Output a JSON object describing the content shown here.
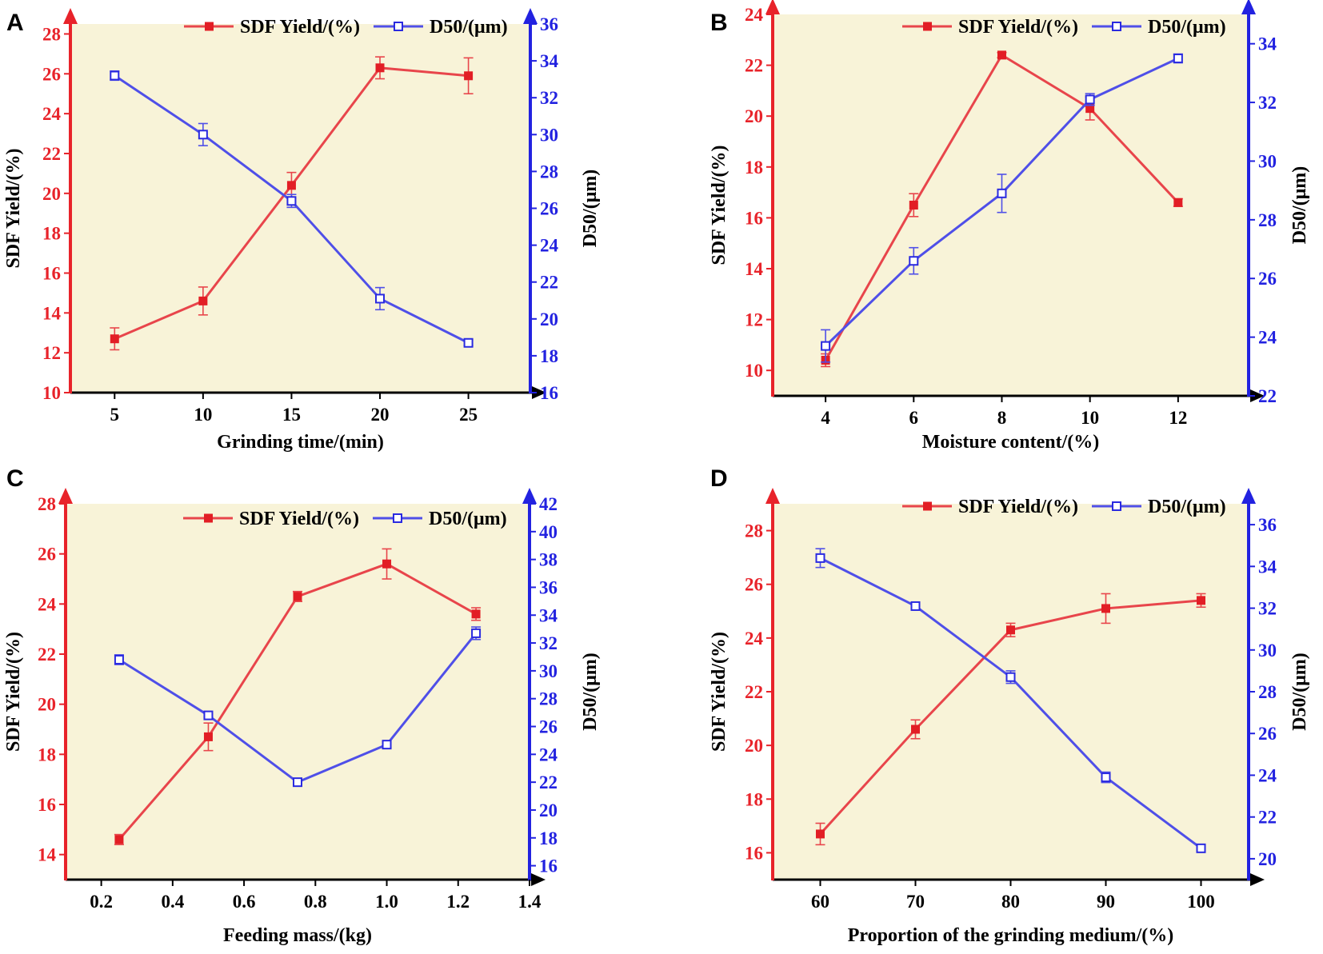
{
  "figure": {
    "colors": {
      "plot_background": "#f8f3d8",
      "left_axis": "#e8232a",
      "right_axis": "#2222e0",
      "sdf_line": "#e8454b",
      "sdf_marker": "#e21e25",
      "d50_line": "#4f4fe8",
      "d50_marker": "#2a2ae0",
      "x_axis": "#000000"
    }
  },
  "chart_data": [
    {
      "panel": "A",
      "type": "line",
      "xlabel": "Grinding time/(min)",
      "ylabel": "SDF Yield/(%)",
      "y2label": "D50/(μm)",
      "legend": [
        "SDF Yield/(%)",
        "D50/(μm)"
      ],
      "legend_position": "top-right",
      "xlim": [
        2.5,
        28.5
      ],
      "xticks": [
        "5",
        "10",
        "15",
        "20",
        "25"
      ],
      "xtick_values": [
        5,
        10,
        15,
        20,
        25
      ],
      "ylim": [
        10,
        28.5
      ],
      "yticks": [
        "10",
        "12",
        "14",
        "16",
        "18",
        "20",
        "22",
        "24",
        "26",
        "28"
      ],
      "ytick_values": [
        10,
        12,
        14,
        16,
        18,
        20,
        22,
        24,
        26,
        28
      ],
      "y2lim": [
        16,
        36
      ],
      "y2ticks": [
        "16",
        "18",
        "20",
        "22",
        "24",
        "26",
        "28",
        "30",
        "32",
        "34",
        "36"
      ],
      "y2tick_values": [
        16,
        18,
        20,
        22,
        24,
        26,
        28,
        30,
        32,
        34,
        36
      ],
      "series": [
        {
          "name": "SDF Yield/(%)",
          "axis": "left",
          "x": [
            5,
            10,
            15,
            20,
            25
          ],
          "values": [
            12.7,
            14.6,
            20.4,
            26.3,
            25.9
          ],
          "errors": [
            0.55,
            0.7,
            0.65,
            0.55,
            0.9
          ]
        },
        {
          "name": "D50/(μm)",
          "axis": "right",
          "x": [
            5,
            10,
            15,
            20,
            25
          ],
          "values": [
            33.2,
            30.0,
            26.4,
            21.1,
            18.7
          ],
          "errors": [
            0.25,
            0.6,
            0.35,
            0.6,
            0.15
          ]
        }
      ]
    },
    {
      "panel": "B",
      "type": "line",
      "xlabel": "Moisture content/(%)",
      "ylabel": "SDF Yield/(%)",
      "y2label": "D50/(μm)",
      "legend": [
        "SDF Yield/(%)",
        "D50/(μm)"
      ],
      "legend_position": "top-right",
      "xlim": [
        2.8,
        13.6
      ],
      "xticks": [
        "4",
        "6",
        "8",
        "10",
        "12"
      ],
      "xtick_values": [
        4,
        6,
        8,
        10,
        12
      ],
      "ylim": [
        9,
        24
      ],
      "yticks": [
        "10",
        "12",
        "14",
        "16",
        "18",
        "20",
        "22",
        "24"
      ],
      "ytick_values": [
        10,
        12,
        14,
        16,
        18,
        20,
        22,
        24
      ],
      "y2lim": [
        22,
        35
      ],
      "y2ticks": [
        "22",
        "24",
        "26",
        "28",
        "30",
        "32",
        "34"
      ],
      "y2tick_values": [
        22,
        24,
        26,
        28,
        30,
        32,
        34
      ],
      "series": [
        {
          "name": "SDF Yield/(%)",
          "axis": "left",
          "x": [
            4,
            6,
            8,
            10,
            12
          ],
          "values": [
            10.4,
            16.5,
            22.4,
            20.3,
            16.6
          ],
          "errors": [
            0.25,
            0.45,
            0.1,
            0.45,
            0.15
          ]
        },
        {
          "name": "D50/(μm)",
          "axis": "right",
          "x": [
            4,
            6,
            8,
            10,
            12
          ],
          "values": [
            23.7,
            26.6,
            28.9,
            32.1,
            33.5
          ],
          "errors": [
            0.55,
            0.45,
            0.65,
            0.2,
            0.15
          ]
        }
      ]
    },
    {
      "panel": "C",
      "type": "line",
      "xlabel": "Feeding mass/(kg)",
      "ylabel": "SDF Yield/(%)",
      "y2label": "D50/(μm)",
      "legend": [
        "SDF Yield/(%)",
        "D50/(μm)"
      ],
      "legend_position": "top-right",
      "xlim": [
        0.1,
        1.4
      ],
      "xticks": [
        "0.2",
        "0.4",
        "0.6",
        "0.8",
        "1.0",
        "1.2",
        "1.4"
      ],
      "xtick_values": [
        0.2,
        0.4,
        0.6,
        0.8,
        1.0,
        1.2,
        1.4
      ],
      "ylim": [
        13,
        28
      ],
      "yticks": [
        "14",
        "16",
        "18",
        "20",
        "22",
        "24",
        "26",
        "28"
      ],
      "ytick_values": [
        14,
        16,
        18,
        20,
        22,
        24,
        26,
        28
      ],
      "y2lim": [
        15,
        42
      ],
      "y2ticks": [
        "16",
        "18",
        "20",
        "22",
        "24",
        "26",
        "28",
        "30",
        "32",
        "34",
        "36",
        "38",
        "40",
        "42"
      ],
      "y2tick_values": [
        16,
        18,
        20,
        22,
        24,
        26,
        28,
        30,
        32,
        34,
        36,
        38,
        40,
        42
      ],
      "series": [
        {
          "name": "SDF Yield/(%)",
          "axis": "left",
          "x": [
            0.25,
            0.5,
            0.75,
            1.0,
            1.25
          ],
          "values": [
            14.6,
            18.7,
            24.3,
            25.6,
            23.6
          ],
          "errors": [
            0.2,
            0.55,
            0.2,
            0.6,
            0.25
          ]
        },
        {
          "name": "D50/(μm)",
          "axis": "right",
          "x": [
            0.25,
            0.5,
            0.75,
            1.0,
            1.25
          ],
          "values": [
            30.8,
            26.8,
            22.0,
            24.7,
            32.7
          ],
          "errors": [
            0.35,
            0.1,
            0.1,
            0.2,
            0.45
          ]
        }
      ]
    },
    {
      "panel": "D",
      "type": "line",
      "xlabel": "Proportion of the grinding medium/(%)",
      "ylabel": "SDF Yield/(%)",
      "y2label": "D50/(μm)",
      "legend": [
        "SDF Yield/(%)",
        "D50/(μm)"
      ],
      "legend_position": "top-right",
      "xlim": [
        55,
        105
      ],
      "xticks": [
        "60",
        "70",
        "80",
        "90",
        "100"
      ],
      "xtick_values": [
        60,
        70,
        80,
        90,
        100
      ],
      "ylim": [
        15,
        29
      ],
      "yticks": [
        "16",
        "18",
        "20",
        "22",
        "24",
        "26",
        "28"
      ],
      "ytick_values": [
        16,
        18,
        20,
        22,
        24,
        26,
        28
      ],
      "y2lim": [
        19,
        37
      ],
      "y2ticks": [
        "20",
        "22",
        "24",
        "26",
        "28",
        "30",
        "32",
        "34",
        "36"
      ],
      "y2tick_values": [
        20,
        22,
        24,
        26,
        28,
        30,
        32,
        34,
        36
      ],
      "series": [
        {
          "name": "SDF Yield/(%)",
          "axis": "left",
          "x": [
            60,
            70,
            80,
            90,
            100
          ],
          "values": [
            16.7,
            20.6,
            24.3,
            25.1,
            25.4
          ],
          "errors": [
            0.4,
            0.35,
            0.25,
            0.55,
            0.25
          ]
        },
        {
          "name": "D50/(μm)",
          "axis": "right",
          "x": [
            60,
            70,
            80,
            90,
            100
          ],
          "values": [
            34.4,
            32.1,
            28.7,
            23.9,
            20.5
          ],
          "errors": [
            0.45,
            0.15,
            0.3,
            0.25,
            0.05
          ]
        }
      ]
    }
  ]
}
